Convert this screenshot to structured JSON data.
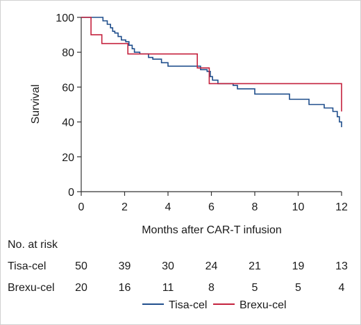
{
  "chart_data": {
    "type": "line",
    "xlabel": "Months after CAR-T infusion",
    "ylabel": "Survival",
    "xlim": [
      0,
      12
    ],
    "ylim": [
      0,
      100
    ],
    "x_ticks": [
      "0",
      "2",
      "4",
      "6",
      "8",
      "10",
      "12"
    ],
    "y_ticks": [
      "0",
      "20",
      "40",
      "60",
      "80",
      "100"
    ],
    "grid": false,
    "legend_position": "bottom",
    "series": [
      {
        "name": "Tisa-cel",
        "color": "#1f4e8c",
        "step": true,
        "x": [
          0,
          1.0,
          1.2,
          1.35,
          1.45,
          1.55,
          1.7,
          1.85,
          2.05,
          2.2,
          2.35,
          2.45,
          2.7,
          3.1,
          3.3,
          3.7,
          4.0,
          4.6,
          5.5,
          5.8,
          5.95,
          6.05,
          6.3,
          7.0,
          7.2,
          8.0,
          9.6,
          10.5,
          11.2,
          11.6,
          11.8,
          11.9,
          12.0
        ],
        "y": [
          100,
          98,
          96,
          94,
          92,
          91,
          89,
          87,
          86,
          84,
          82,
          80,
          79,
          77,
          76,
          74,
          72,
          72,
          70,
          69,
          66,
          64,
          62,
          61,
          59,
          56,
          53,
          50,
          48,
          46,
          43,
          40,
          37
        ]
      },
      {
        "name": "Brexu-cel",
        "color": "#c4213d",
        "step": true,
        "x": [
          0,
          0.45,
          0.95,
          2.15,
          5.35,
          5.9,
          12.0
        ],
        "y": [
          100,
          90,
          85,
          79,
          71,
          62,
          46
        ]
      }
    ]
  },
  "risk_table": {
    "title": "No. at risk",
    "time_points": [
      0,
      2,
      4,
      6,
      8,
      10,
      12
    ],
    "rows": [
      {
        "name": "Tisa-cel",
        "values": [
          "50",
          "39",
          "30",
          "24",
          "21",
          "19",
          "13"
        ]
      },
      {
        "name": "Brexu-cel",
        "values": [
          "20",
          "16",
          "11",
          "8",
          "5",
          "5",
          "4"
        ]
      }
    ]
  },
  "legend": {
    "items": [
      {
        "label": "Tisa-cel",
        "color": "#1f4e8c"
      },
      {
        "label": "Brexu-cel",
        "color": "#c4213d"
      }
    ]
  }
}
